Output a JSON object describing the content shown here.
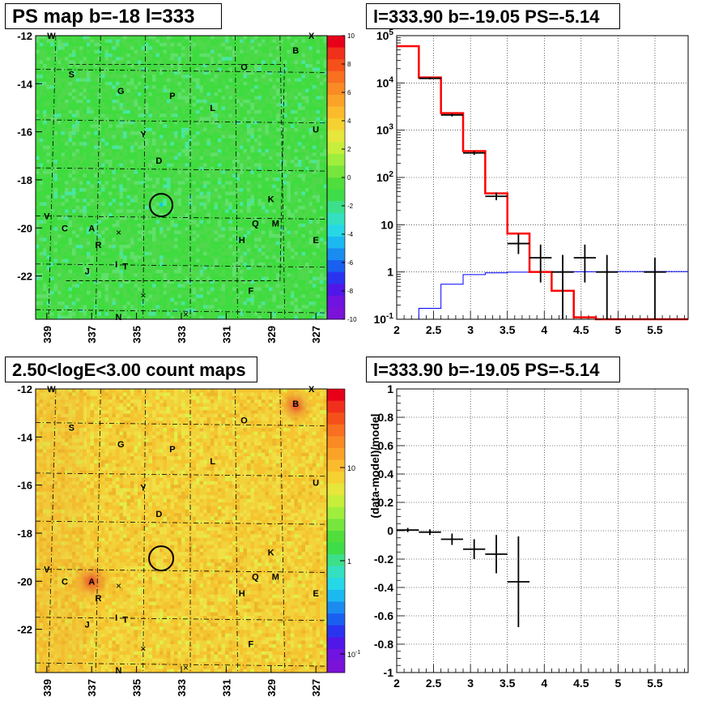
{
  "panels": {
    "ps_map_title": "PS map b=-18 l=333",
    "spectrum_title": "l=333.90 b=-19.05 PS=-5.14",
    "count_map_title": "2.50<logE<3.00 count maps",
    "residual_title": "l=333.90 b=-19.05 PS=-5.14"
  },
  "colors": {
    "map_green": "#3fdc3f",
    "count_yellow": "#f0d23c",
    "model_line": "#ff0000",
    "background_line": "#0000ff",
    "data_points": "#000000"
  },
  "chart_data": [
    {
      "type": "heatmap",
      "title": "PS map b=-18 l=333",
      "xlim": [
        339.5,
        326.5
      ],
      "ylim": [
        -23.8,
        -12
      ],
      "xticks": [
        "339",
        "337",
        "335",
        "333",
        "331",
        "329",
        "327"
      ],
      "yticks": [
        "-12",
        "-14",
        "-16",
        "-18",
        "-20",
        "-22"
      ],
      "colorbar": {
        "min": -10,
        "max": 10,
        "ticks": [
          "10",
          "8",
          "6",
          "4",
          "2",
          "0",
          "-2",
          "-4",
          "-6",
          "-8",
          "-10"
        ]
      },
      "marked_position": {
        "l": 333.9,
        "b": -19.05
      },
      "sources": [
        {
          "id": "W",
          "l": 338.8,
          "b": -12.0
        },
        {
          "id": "X",
          "l": 327.2,
          "b": -12.0
        },
        {
          "id": "B",
          "l": 327.9,
          "b": -12.6
        },
        {
          "id": "O",
          "l": 330.2,
          "b": -13.3
        },
        {
          "id": "S",
          "l": 337.9,
          "b": -13.6
        },
        {
          "id": "G",
          "l": 335.7,
          "b": -14.3
        },
        {
          "id": "P",
          "l": 333.4,
          "b": -14.5
        },
        {
          "id": "L",
          "l": 331.6,
          "b": -15.0
        },
        {
          "id": "Y",
          "l": 334.7,
          "b": -16.1
        },
        {
          "id": "U",
          "l": 327.0,
          "b": -15.9
        },
        {
          "id": "D",
          "l": 334.0,
          "b": -17.2
        },
        {
          "id": "K",
          "l": 329.0,
          "b": -18.8
        },
        {
          "id": "V",
          "l": 339.0,
          "b": -19.5
        },
        {
          "id": "Q",
          "l": 329.7,
          "b": -19.8
        },
        {
          "id": "M",
          "l": 328.8,
          "b": -19.8
        },
        {
          "id": "A",
          "l": 337.0,
          "b": -20.0
        },
        {
          "id": "C",
          "l": 338.2,
          "b": -20.0
        },
        {
          "id": "H",
          "l": 330.3,
          "b": -20.5
        },
        {
          "id": "E",
          "l": 327.0,
          "b": -20.5
        },
        {
          "id": "R",
          "l": 336.7,
          "b": -20.7
        },
        {
          "id": "I",
          "l": 335.9,
          "b": -21.5
        },
        {
          "id": "T",
          "l": 335.5,
          "b": -21.6
        },
        {
          "id": "J",
          "l": 337.2,
          "b": -21.8
        },
        {
          "id": "F",
          "l": 329.9,
          "b": -22.6
        },
        {
          "id": "N",
          "l": 335.8,
          "b": -23.7
        }
      ],
      "x_markers": [
        {
          "l": 335.8,
          "b": -20.2
        },
        {
          "l": 334.7,
          "b": -22.8
        },
        {
          "l": 332.8,
          "b": -23.6
        }
      ]
    },
    {
      "type": "line",
      "title": "l=333.90 b=-19.05 PS=-5.14",
      "scale": "log-y",
      "xlim": [
        2,
        5.95
      ],
      "ylim": [
        0.1,
        100000
      ],
      "xticks": [
        "2",
        "2.5",
        "3",
        "3.5",
        "4",
        "4.5",
        "5",
        "5.5"
      ],
      "yticks": [
        {
          "base": "10",
          "exp": "5"
        },
        {
          "base": "10",
          "exp": "4"
        },
        {
          "base": "10",
          "exp": "3"
        },
        {
          "base": "10",
          "exp": "2"
        },
        {
          "base": "10",
          "exp": ""
        },
        {
          "base": "1",
          "exp": ""
        },
        {
          "base": "10",
          "exp": "-1"
        }
      ],
      "series": [
        {
          "role": "model",
          "edges": [
            2.0,
            2.3,
            2.6,
            2.9,
            3.2,
            3.5,
            3.8,
            4.1,
            4.4,
            4.7,
            5.0,
            5.95
          ],
          "values": [
            60000,
            13000,
            2300,
            360,
            46,
            6.5,
            1.0,
            0.4,
            0.11,
            0.1,
            0.1
          ]
        },
        {
          "role": "background",
          "edges": [
            2.0,
            2.3,
            2.6,
            2.9,
            3.2,
            3.5,
            3.8,
            4.1,
            4.4,
            4.7,
            5.0,
            5.95
          ],
          "values": [
            0.1,
            0.17,
            0.55,
            0.88,
            0.96,
            0.99,
            1.0,
            1.01,
            1.01,
            1.01,
            1.02
          ]
        },
        {
          "role": "data",
          "points": [
            {
              "x": 2.45,
              "y": 12500,
              "xerr": 0.15,
              "lo": 11900,
              "hi": 13100
            },
            {
              "x": 2.75,
              "y": 2100,
              "xerr": 0.15,
              "lo": 1950,
              "hi": 2250
            },
            {
              "x": 3.05,
              "y": 330,
              "xerr": 0.15,
              "lo": 300,
              "hi": 360
            },
            {
              "x": 3.35,
              "y": 40,
              "xerr": 0.15,
              "lo": 33,
              "hi": 48
            },
            {
              "x": 3.65,
              "y": 4.0,
              "xerr": 0.15,
              "lo": 2.4,
              "hi": 6.4
            },
            {
              "x": 3.95,
              "y": 2.0,
              "xerr": 0.15,
              "lo": 0.6,
              "hi": 3.8
            },
            {
              "x": 4.25,
              "y": 1.0,
              "xerr": 0.15,
              "lo": 0.1,
              "hi": 2.3
            },
            {
              "x": 4.55,
              "y": 2.0,
              "xerr": 0.15,
              "lo": 0.6,
              "hi": 3.8
            },
            {
              "x": 4.85,
              "y": 1.0,
              "xerr": 0.15,
              "lo": 0.1,
              "hi": 2.3
            },
            {
              "x": 5.5,
              "y": 1.0,
              "xerr": 0.15,
              "lo": 0.1,
              "hi": 2.0
            }
          ]
        }
      ]
    },
    {
      "type": "heatmap",
      "title": "2.50<logE<3.00 count maps",
      "xlim": [
        339.5,
        326.5
      ],
      "ylim": [
        -23.8,
        -12
      ],
      "xticks": [
        "339",
        "337",
        "335",
        "333",
        "331",
        "329",
        "327"
      ],
      "yticks": [
        "-12",
        "-14",
        "-16",
        "-18",
        "-20",
        "-22"
      ],
      "colorbar": {
        "scale": "log",
        "ticks": [
          {
            "base": "10",
            "exp": ""
          },
          {
            "base": "1",
            "exp": ""
          },
          {
            "base": "10",
            "exp": "-1"
          }
        ]
      },
      "marked_position": {
        "l": 333.9,
        "b": -19.05
      }
    },
    {
      "type": "scatter",
      "title": "l=333.90 b=-19.05 PS=-5.14",
      "ylabel": "(data-model)/model",
      "xlim": [
        2,
        5.95
      ],
      "ylim": [
        -1,
        1
      ],
      "xticks": [
        "2",
        "2.5",
        "3",
        "3.5",
        "4",
        "4.5",
        "5",
        "5.5"
      ],
      "yticks": [
        "1",
        "0.8",
        "0.6",
        "0.4",
        "0.2",
        "0",
        "-0.2",
        "-0.4",
        "-0.6",
        "-0.8",
        "-1"
      ],
      "points": [
        {
          "x": 2.15,
          "y": 0.005,
          "xerr": 0.15,
          "lo": -0.01,
          "hi": 0.02
        },
        {
          "x": 2.45,
          "y": -0.01,
          "xerr": 0.15,
          "lo": -0.03,
          "hi": 0.01
        },
        {
          "x": 2.75,
          "y": -0.06,
          "xerr": 0.15,
          "lo": -0.1,
          "hi": -0.02
        },
        {
          "x": 3.05,
          "y": -0.13,
          "xerr": 0.15,
          "lo": -0.2,
          "hi": -0.06
        },
        {
          "x": 3.35,
          "y": -0.165,
          "xerr": 0.15,
          "lo": -0.3,
          "hi": -0.03
        },
        {
          "x": 3.65,
          "y": -0.36,
          "xerr": 0.15,
          "lo": -0.68,
          "hi": -0.04
        }
      ]
    }
  ]
}
